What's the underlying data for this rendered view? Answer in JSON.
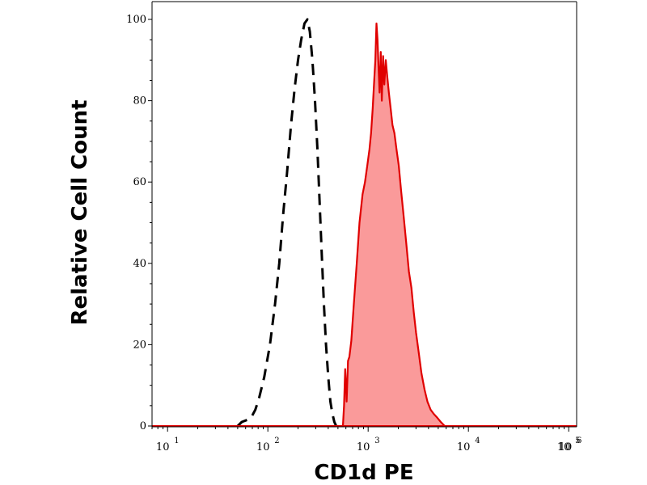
{
  "chart_data": {
    "type": "area",
    "xlabel": "CD1d PE",
    "ylabel": "Relative Cell Count",
    "xscale": "log",
    "xlim": [
      7,
      120000
    ],
    "ylim": [
      0,
      105
    ],
    "yticks": [
      {
        "value": 0,
        "label": "0"
      },
      {
        "value": 20,
        "label": "20"
      },
      {
        "value": 40,
        "label": "40"
      },
      {
        "value": 60,
        "label": "60"
      },
      {
        "value": 80,
        "label": "80"
      },
      {
        "value": 100,
        "label": "100"
      }
    ],
    "xticks": [
      {
        "value": 10,
        "base": "10",
        "exp": "1"
      },
      {
        "value": 100,
        "base": "10",
        "exp": "2"
      },
      {
        "value": 1000,
        "base": "10",
        "exp": "3"
      },
      {
        "value": 10000,
        "base": "10",
        "exp": "4"
      },
      {
        "value": 100000,
        "base": "10",
        "exp": "5"
      },
      {
        "value": 1000000,
        "base": "10",
        "exp": "6"
      }
    ],
    "grid": false,
    "series": [
      {
        "style": "dashed",
        "color": "#000000",
        "fill": "none",
        "points": [
          [
            50,
            0
          ],
          [
            55,
            1
          ],
          [
            62,
            1.5
          ],
          [
            68,
            2
          ],
          [
            75,
            4
          ],
          [
            82,
            7
          ],
          [
            92,
            12
          ],
          [
            105,
            20
          ],
          [
            118,
            30
          ],
          [
            130,
            40
          ],
          [
            142,
            52
          ],
          [
            155,
            62
          ],
          [
            170,
            74
          ],
          [
            185,
            83
          ],
          [
            200,
            90
          ],
          [
            215,
            95
          ],
          [
            232,
            99
          ],
          [
            248,
            100
          ],
          [
            262,
            97
          ],
          [
            278,
            90
          ],
          [
            295,
            80
          ],
          [
            312,
            68
          ],
          [
            328,
            55
          ],
          [
            345,
            42
          ],
          [
            362,
            30
          ],
          [
            380,
            20
          ],
          [
            400,
            12
          ],
          [
            420,
            6
          ],
          [
            440,
            3
          ],
          [
            460,
            1
          ],
          [
            480,
            0
          ]
        ]
      },
      {
        "style": "solid",
        "color": "#e00000",
        "fill": "#fa9a9a",
        "points": [
          [
            560,
            0
          ],
          [
            575,
            5
          ],
          [
            590,
            14
          ],
          [
            610,
            6
          ],
          [
            630,
            16
          ],
          [
            650,
            17
          ],
          [
            680,
            21
          ],
          [
            720,
            30
          ],
          [
            770,
            40
          ],
          [
            820,
            50
          ],
          [
            880,
            57
          ],
          [
            930,
            60
          ],
          [
            980,
            64
          ],
          [
            1030,
            68
          ],
          [
            1070,
            72
          ],
          [
            1110,
            78
          ],
          [
            1150,
            85
          ],
          [
            1180,
            90
          ],
          [
            1210,
            99
          ],
          [
            1240,
            95
          ],
          [
            1270,
            88
          ],
          [
            1300,
            82
          ],
          [
            1335,
            92
          ],
          [
            1370,
            80
          ],
          [
            1410,
            91
          ],
          [
            1450,
            84
          ],
          [
            1500,
            90
          ],
          [
            1550,
            86
          ],
          [
            1610,
            82
          ],
          [
            1680,
            78
          ],
          [
            1750,
            74
          ],
          [
            1830,
            72
          ],
          [
            1920,
            68
          ],
          [
            2020,
            64
          ],
          [
            2130,
            58
          ],
          [
            2250,
            52
          ],
          [
            2400,
            45
          ],
          [
            2550,
            38
          ],
          [
            2700,
            34
          ],
          [
            2850,
            28
          ],
          [
            3000,
            23
          ],
          [
            3200,
            18
          ],
          [
            3400,
            13
          ],
          [
            3650,
            9
          ],
          [
            3900,
            6
          ],
          [
            4200,
            4
          ],
          [
            4500,
            3
          ],
          [
            4900,
            2
          ],
          [
            5300,
            1
          ],
          [
            5800,
            0
          ]
        ]
      }
    ]
  }
}
